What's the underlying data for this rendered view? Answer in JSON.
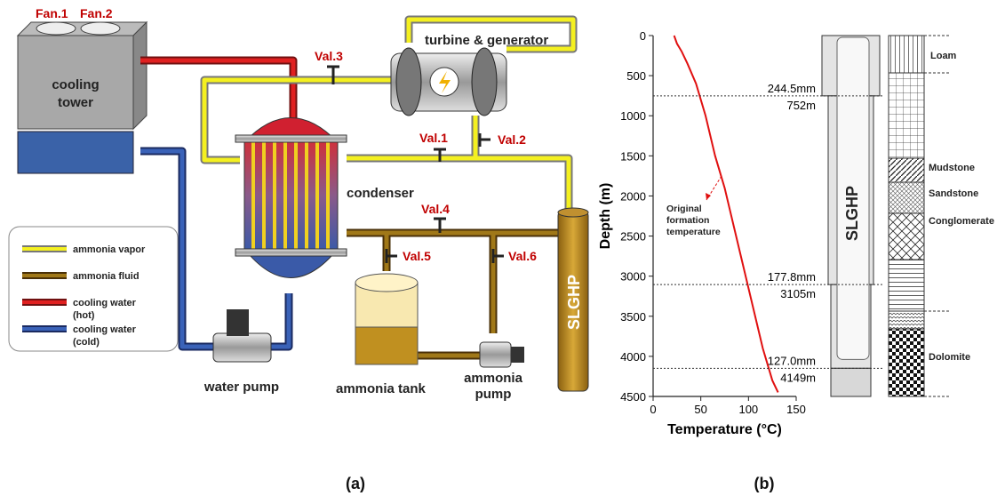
{
  "diagram": {
    "fans": [
      "Fan.1",
      "Fan.2"
    ],
    "cooling_tower": [
      "cooling",
      "tower"
    ],
    "turbine": "turbine & generator",
    "condenser": "condenser",
    "valves": [
      "Val.1",
      "Val.2",
      "Val.3",
      "Val.4",
      "Val.5",
      "Val.6"
    ],
    "slghp": "SLGHP",
    "water_pump": "water pump",
    "ammonia_tank": "ammonia tank",
    "ammonia_pump": [
      "ammonia",
      "pump"
    ],
    "legend": [
      [
        "ammonia vapor"
      ],
      [
        "ammonia fluid"
      ],
      [
        "cooling water",
        "(hot)"
      ],
      [
        "cooling water",
        "(cold)"
      ]
    ]
  },
  "chart_data": {
    "type": "line",
    "xlabel": "Temperature (°C)",
    "ylabel": "Depth (m)",
    "xlim": [
      0,
      150
    ],
    "xticks": [
      0,
      50,
      100,
      150
    ],
    "ylim": [
      0,
      4500
    ],
    "yticks": [
      0,
      500,
      1000,
      1500,
      2000,
      2500,
      3000,
      3500,
      4000,
      4500
    ],
    "y_inverted": true,
    "series": [
      {
        "color": "#e01010",
        "x": [
          22,
          25,
          30,
          36,
          45,
          55,
          65,
          75,
          85,
          95,
          105,
          115,
          125,
          131
        ],
        "values": [
          0,
          100,
          200,
          350,
          600,
          1000,
          1500,
          1900,
          2400,
          2900,
          3400,
          3900,
          4300,
          4450
        ]
      }
    ],
    "annotation": "Original formation temperature",
    "casings": [
      {
        "size": "244.5mm",
        "depth": 752,
        "depth_label": "752m"
      },
      {
        "size": "177.8mm",
        "depth": 3105,
        "depth_label": "3105m"
      },
      {
        "size": "127.0mm",
        "depth": 4149,
        "depth_label": "4149m"
      }
    ]
  },
  "well_label": "SLGHP",
  "strata": [
    "Loam",
    "Mudstone",
    "Sandstone",
    "Conglomerate",
    "Dolomite"
  ],
  "panel_labels": [
    "(a)",
    "(b)"
  ]
}
